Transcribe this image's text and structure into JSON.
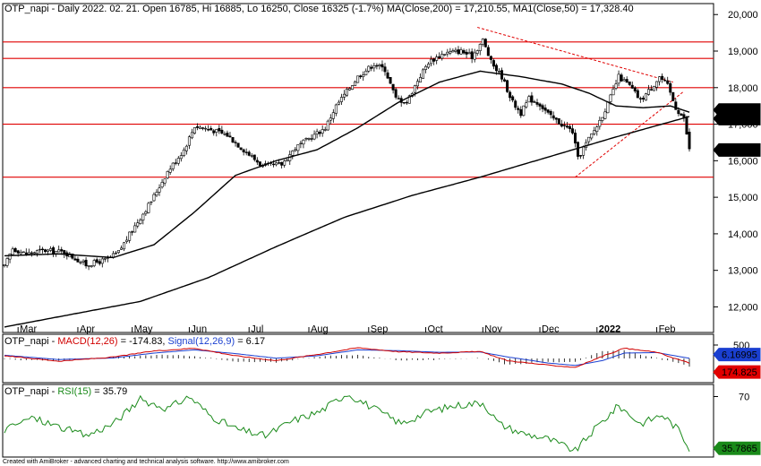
{
  "chart_data": [
    {
      "type": "candlestick",
      "panel": "price",
      "header": {
        "ticker": "OTP_napi",
        "text": "OTP_napi - Daily 2022. 02. 21. Open 16785, Hi 16885, Lo 16250, Close 16325 (-1.7%)",
        "ma_label": "MA(Close,200) = 17,210.55,",
        "ma1_label": "MA1(Close,50) = 17,328.40"
      },
      "ylim": [
        11300,
        20300
      ],
      "y_ticks": [
        12000,
        13000,
        14000,
        15000,
        16000,
        17000,
        18000,
        19000,
        20000
      ],
      "y_tick_labels": [
        "12,000",
        "13,000",
        "14,000",
        "15,000",
        "16,000",
        "17,000",
        "18,000",
        "19,000",
        "20,000"
      ],
      "x_months": [
        {
          "label": "Mar",
          "day": 5
        },
        {
          "label": "Apr",
          "day": 27
        },
        {
          "label": "May",
          "day": 47
        },
        {
          "label": "Jun",
          "day": 68
        },
        {
          "label": "Jul",
          "day": 90
        },
        {
          "label": "Aug",
          "day": 112
        },
        {
          "label": "Sep",
          "day": 134
        },
        {
          "label": "Oct",
          "day": 155
        },
        {
          "label": "Nov",
          "day": 176
        },
        {
          "label": "Dec",
          "day": 197
        },
        {
          "label": "2022",
          "day": 218
        },
        {
          "label": "Feb",
          "day": 240
        }
      ],
      "price_keypoints": [
        [
          0,
          13100
        ],
        [
          3,
          13600
        ],
        [
          8,
          13450
        ],
        [
          14,
          13550
        ],
        [
          22,
          13500
        ],
        [
          30,
          13150
        ],
        [
          38,
          13300
        ],
        [
          42,
          13500
        ],
        [
          47,
          14100
        ],
        [
          54,
          14900
        ],
        [
          60,
          15700
        ],
        [
          66,
          16300
        ],
        [
          70,
          16950
        ],
        [
          76,
          16850
        ],
        [
          82,
          16700
        ],
        [
          88,
          16300
        ],
        [
          95,
          15850
        ],
        [
          102,
          15900
        ],
        [
          107,
          16350
        ],
        [
          112,
          16600
        ],
        [
          118,
          16900
        ],
        [
          122,
          17500
        ],
        [
          126,
          17900
        ],
        [
          130,
          18300
        ],
        [
          136,
          18650
        ],
        [
          140,
          18500
        ],
        [
          144,
          17700
        ],
        [
          148,
          17600
        ],
        [
          152,
          18200
        ],
        [
          156,
          18700
        ],
        [
          162,
          18950
        ],
        [
          168,
          19000
        ],
        [
          172,
          18850
        ],
        [
          176,
          19300
        ],
        [
          179,
          18700
        ],
        [
          183,
          18300
        ],
        [
          187,
          17600
        ],
        [
          190,
          17300
        ],
        [
          193,
          17700
        ],
        [
          197,
          17550
        ],
        [
          201,
          17200
        ],
        [
          205,
          17000
        ],
        [
          209,
          16800
        ],
        [
          211,
          16050
        ],
        [
          213,
          16350
        ],
        [
          218,
          16950
        ],
        [
          222,
          17550
        ],
        [
          226,
          18300
        ],
        [
          230,
          18050
        ],
        [
          234,
          17650
        ],
        [
          238,
          18000
        ],
        [
          241,
          18300
        ],
        [
          244,
          18050
        ],
        [
          247,
          17450
        ],
        [
          250,
          17150
        ],
        [
          252,
          16325
        ]
      ],
      "last_close": 16325,
      "series": [
        {
          "name": "MA(Close,200)",
          "value": 17210.55,
          "tag": "17,210.6",
          "color": "#000000"
        },
        {
          "name": "MA1(Close,50)",
          "value": 17328.4,
          "tag": "17,328.4",
          "color": "#000000"
        }
      ],
      "ma200_keypoints": [
        [
          0,
          11450
        ],
        [
          25,
          11800
        ],
        [
          50,
          12150
        ],
        [
          75,
          12800
        ],
        [
          100,
          13650
        ],
        [
          125,
          14450
        ],
        [
          150,
          15050
        ],
        [
          175,
          15550
        ],
        [
          200,
          16100
        ],
        [
          225,
          16650
        ],
        [
          252,
          17210.55
        ]
      ],
      "ma50_keypoints": [
        [
          0,
          13400
        ],
        [
          20,
          13450
        ],
        [
          40,
          13350
        ],
        [
          55,
          13700
        ],
        [
          70,
          14600
        ],
        [
          85,
          15600
        ],
        [
          100,
          16000
        ],
        [
          115,
          16300
        ],
        [
          130,
          16900
        ],
        [
          145,
          17600
        ],
        [
          160,
          18150
        ],
        [
          175,
          18450
        ],
        [
          190,
          18300
        ],
        [
          205,
          18100
        ],
        [
          215,
          17850
        ],
        [
          225,
          17500
        ],
        [
          235,
          17450
        ],
        [
          245,
          17500
        ],
        [
          252,
          17328.4
        ]
      ],
      "horizontal_levels": [
        15550,
        17000,
        18000,
        18800,
        19250
      ],
      "trendlines": [
        {
          "from": [
            174,
            19650
          ],
          "to": [
            246,
            18150
          ]
        },
        {
          "from": [
            210,
            15550
          ],
          "to": [
            250,
            17900
          ]
        }
      ],
      "price_tags": [
        "17,328.4",
        "17,210.6",
        "16,325"
      ]
    },
    {
      "type": "line",
      "panel": "macd",
      "label_prefix": "OTP_napi - ",
      "macd_label": "MACD(12,26)",
      "macd_value": "= -174.83,",
      "signal_label": "Signal(12,26,9)",
      "signal_value": "= 6.17",
      "y_ticks_labels": [
        "500"
      ],
      "series": [
        {
          "name": "MACD(12,26)",
          "value": -174.83,
          "tag": "174.825",
          "color": "#d10000"
        },
        {
          "name": "Signal(12,26,9)",
          "value": 6.17,
          "tag": "6.16995",
          "color": "#1a3fd0"
        }
      ],
      "ylim": [
        -900,
        900
      ],
      "macd_keypoints": [
        [
          0,
          100
        ],
        [
          20,
          -100
        ],
        [
          40,
          50
        ],
        [
          55,
          280
        ],
        [
          70,
          380
        ],
        [
          85,
          100
        ],
        [
          100,
          -80
        ],
        [
          115,
          150
        ],
        [
          130,
          400
        ],
        [
          145,
          250
        ],
        [
          160,
          200
        ],
        [
          175,
          260
        ],
        [
          185,
          -80
        ],
        [
          200,
          -250
        ],
        [
          210,
          -330
        ],
        [
          220,
          80
        ],
        [
          228,
          380
        ],
        [
          240,
          230
        ],
        [
          252,
          -174.83
        ]
      ],
      "signal_keypoints": [
        [
          0,
          120
        ],
        [
          20,
          -40
        ],
        [
          40,
          20
        ],
        [
          55,
          200
        ],
        [
          70,
          320
        ],
        [
          85,
          180
        ],
        [
          100,
          10
        ],
        [
          115,
          100
        ],
        [
          130,
          320
        ],
        [
          145,
          290
        ],
        [
          160,
          230
        ],
        [
          175,
          240
        ],
        [
          185,
          60
        ],
        [
          200,
          -170
        ],
        [
          210,
          -260
        ],
        [
          220,
          -80
        ],
        [
          228,
          200
        ],
        [
          240,
          220
        ],
        [
          252,
          6.17
        ]
      ]
    },
    {
      "type": "line",
      "panel": "rsi",
      "label_prefix": "OTP_napi - ",
      "rsi_label": "RSI(15)",
      "rsi_value": "= 35.79",
      "y_tick_labels": [
        "70"
      ],
      "series": [
        {
          "name": "RSI(15)",
          "value": 35.79,
          "tag": "35.7865",
          "color": "#1a8a1a"
        }
      ],
      "ylim": [
        30,
        78
      ],
      "rsi_keypoints": [
        [
          0,
          48
        ],
        [
          10,
          56
        ],
        [
          20,
          50
        ],
        [
          30,
          44
        ],
        [
          40,
          52
        ],
        [
          50,
          68
        ],
        [
          60,
          62
        ],
        [
          68,
          70
        ],
        [
          76,
          57
        ],
        [
          86,
          48
        ],
        [
          96,
          44
        ],
        [
          106,
          54
        ],
        [
          116,
          60
        ],
        [
          126,
          72
        ],
        [
          136,
          62
        ],
        [
          146,
          52
        ],
        [
          156,
          60
        ],
        [
          166,
          64
        ],
        [
          176,
          66
        ],
        [
          182,
          52
        ],
        [
          190,
          46
        ],
        [
          200,
          42
        ],
        [
          210,
          34
        ],
        [
          218,
          50
        ],
        [
          226,
          64
        ],
        [
          234,
          52
        ],
        [
          242,
          58
        ],
        [
          248,
          48
        ],
        [
          252,
          35.79
        ]
      ]
    }
  ],
  "footer": "Created with AmiBroker - advanced charting and technical analysis software. http://www.amibroker.com"
}
